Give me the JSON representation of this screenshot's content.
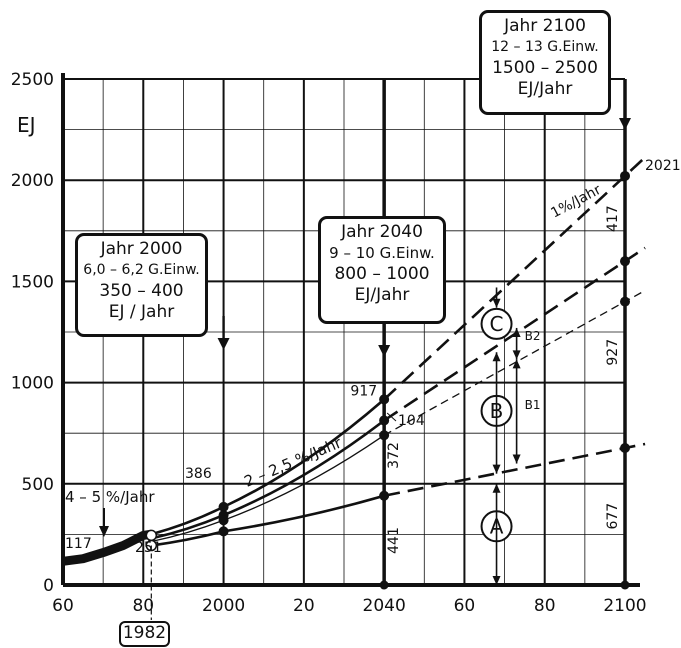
{
  "chart_data": {
    "type": "line",
    "ylabel": "EJ",
    "xlim": [
      1960,
      2100
    ],
    "ylim": [
      0,
      2500
    ],
    "grid": true,
    "x_ticks": [
      {
        "v": 1960,
        "label": "60"
      },
      {
        "v": 1980,
        "label": "80"
      },
      {
        "v": 2000,
        "label": "2000"
      },
      {
        "v": 2020,
        "label": "20"
      },
      {
        "v": 2040,
        "label": "2040"
      },
      {
        "v": 2060,
        "label": "60"
      },
      {
        "v": 2080,
        "label": "80"
      },
      {
        "v": 2100,
        "label": "2100"
      }
    ],
    "y_ticks": [
      0,
      500,
      1000,
      1500,
      2000,
      2500
    ],
    "highlight_year": "1982",
    "historical": {
      "x": [
        1960,
        1965,
        1970,
        1975,
        1980,
        1982
      ],
      "y": [
        117,
        130,
        160,
        195,
        245,
        251
      ]
    },
    "series": [
      {
        "style": "long-dash",
        "label": "1%/Jahr",
        "x": [
          1982,
          2000,
          2040,
          2100
        ],
        "y": [
          251,
          386,
          917,
          2021
        ]
      },
      {
        "style": "solid-dash",
        "x": [
          1982,
          2000,
          2040,
          2100
        ],
        "y": [
          230,
          345,
          813,
          1600
        ]
      },
      {
        "style": "thin",
        "x": [
          1982,
          2000,
          2040,
          2100
        ],
        "y": [
          215,
          320,
          740,
          1400
        ]
      },
      {
        "style": "solid-dash",
        "x": [
          1982,
          2000,
          2040,
          2100
        ],
        "y": [
          195,
          265,
          441,
          677
        ]
      }
    ],
    "segment_labels": [
      {
        "text": "917"
      },
      {
        "text": "104"
      },
      {
        "text": "372"
      },
      {
        "text": "441"
      },
      {
        "text": "2021"
      },
      {
        "text": "417"
      },
      {
        "text": "927"
      },
      {
        "text": "677"
      },
      {
        "text": "117"
      },
      {
        "text": "251"
      },
      {
        "text": "386"
      }
    ],
    "rate_labels": {
      "r1": "1%/Jahr",
      "r2": "2 – 2,5 %/Jahr",
      "r3": "4 – 5 %/Jahr"
    },
    "scenarios": {
      "a": "A",
      "b": "B",
      "c": "C",
      "b1": "B1",
      "b2": "B2"
    }
  },
  "callouts": {
    "y2000": {
      "lines": [
        "Jahr 2000",
        "6,0 – 6,2 G.Einw.",
        "350 – 400",
        "EJ / Jahr"
      ]
    },
    "y2040": {
      "lines": [
        "Jahr 2040",
        "9 – 10 G.Einw.",
        "800 – 1000",
        "EJ/Jahr"
      ]
    },
    "y2100": {
      "lines": [
        "Jahr 2100",
        "12 – 13 G.Einw.",
        "1500 – 2500",
        "EJ/Jahr"
      ]
    }
  }
}
